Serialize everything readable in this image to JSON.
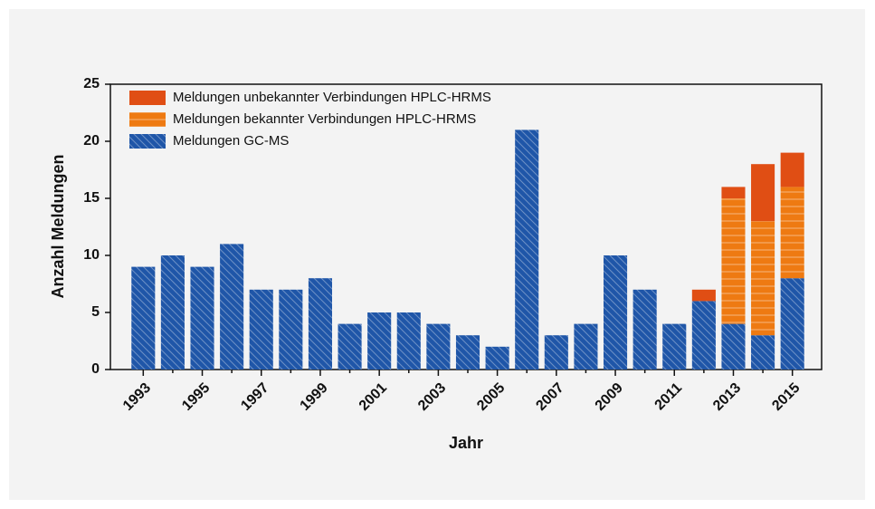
{
  "chart_data": {
    "type": "stacked_bar",
    "x_label": "Jahr",
    "y_label": "Anzahl Meldungen",
    "categories": [
      "1993",
      null,
      "1995",
      null,
      "1997",
      null,
      "1999",
      null,
      "2001",
      null,
      "2003",
      null,
      "2005",
      null,
      "2007",
      null,
      "2009",
      null,
      "2011",
      null,
      "2013",
      null,
      "2015"
    ],
    "series": [
      {
        "name": "Meldungen GC-MS",
        "color": "#1f56a8",
        "values": [
          9,
          10,
          9,
          11,
          7,
          7,
          8,
          4,
          5,
          5,
          4,
          3,
          2,
          21,
          3,
          4,
          10,
          7,
          4,
          6,
          4,
          3,
          8
        ]
      },
      {
        "name": "Meldungen bekannter Verbindungen HPLC-HRMS",
        "color": "#ee7a12",
        "values": [
          null,
          null,
          null,
          null,
          null,
          null,
          null,
          null,
          null,
          null,
          null,
          null,
          null,
          null,
          null,
          null,
          null,
          null,
          null,
          0,
          11,
          10,
          8
        ]
      },
      {
        "name": "Meldungen unbekannter Verbindungen HPLC-HRMS",
        "color": "#e04e14",
        "values": [
          null,
          null,
          null,
          null,
          null,
          null,
          null,
          null,
          null,
          null,
          null,
          null,
          null,
          null,
          null,
          null,
          null,
          null,
          null,
          1,
          1,
          5,
          3
        ]
      }
    ],
    "ylim": [
      0,
      25
    ],
    "yticks": [
      0,
      5,
      10,
      15,
      20,
      25
    ],
    "grid": false,
    "legend": "upper-left"
  }
}
